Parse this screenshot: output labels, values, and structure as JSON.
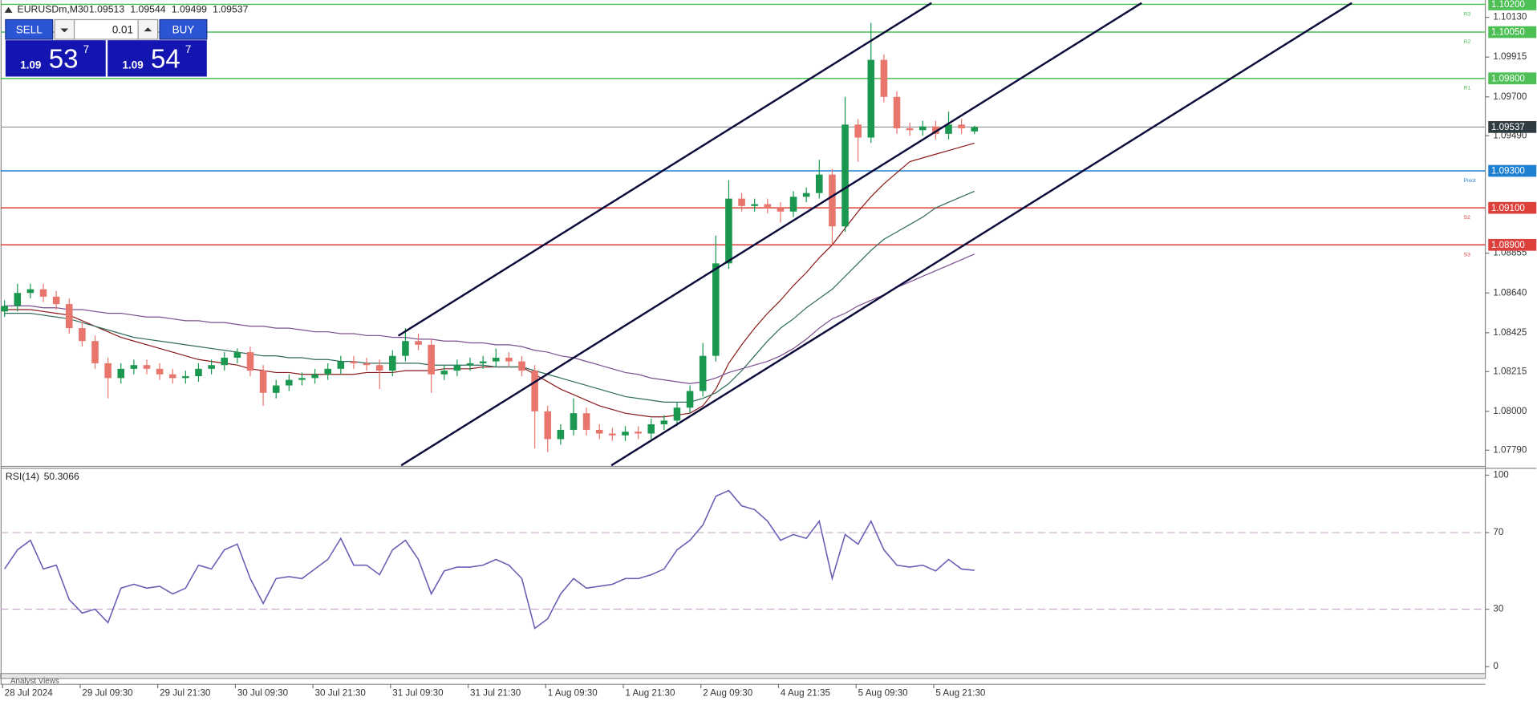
{
  "chart_data": [
    {
      "type": "candlestick",
      "title": "EURUSDm,M30",
      "header_values": [
        1.09513,
        1.09544,
        1.09499,
        1.09537
      ],
      "categories": [
        "28 Jul 2024",
        null,
        null,
        null,
        null,
        null,
        "29 Jul 09:30",
        null,
        null,
        null,
        null,
        null,
        "29 Jul 21:30",
        null,
        null,
        null,
        null,
        null,
        "30 Jul 09:30",
        null,
        null,
        null,
        null,
        null,
        "30 Jul 21:30",
        null,
        null,
        null,
        null,
        null,
        "31 Jul 09:30",
        null,
        null,
        null,
        null,
        null,
        "31 Jul 21:30",
        null,
        null,
        null,
        null,
        null,
        "1 Aug 09:30",
        null,
        null,
        null,
        null,
        null,
        "1 Aug 21:30",
        null,
        null,
        null,
        null,
        null,
        "2 Aug 09:30",
        null,
        null,
        null,
        null,
        null,
        "4 Aug 21:35",
        null,
        null,
        null,
        null,
        null,
        "5 Aug 09:30",
        null,
        null,
        null,
        null,
        null,
        "5 Aug 21:30",
        null,
        null,
        null
      ],
      "open": [
        1.0854,
        1.0857,
        1.0864,
        1.0866,
        1.0862,
        1.0858,
        1.0845,
        1.0838,
        1.0826,
        1.0818,
        1.0823,
        1.0825,
        1.0823,
        1.082,
        1.0818,
        1.0819,
        1.0823,
        1.0825,
        1.0829,
        1.0832,
        1.0822,
        1.081,
        1.0814,
        1.0817,
        1.0818,
        1.082,
        1.0823,
        1.0827,
        1.0826,
        1.0825,
        1.0822,
        1.083,
        1.0838,
        1.0836,
        1.082,
        1.0822,
        1.0825,
        1.0826,
        1.0827,
        1.0829,
        1.0827,
        1.0822,
        1.08,
        1.0785,
        1.079,
        1.0799,
        1.079,
        1.0788,
        1.0787,
        1.0789,
        1.0788,
        1.0793,
        1.0795,
        1.0802,
        1.0811,
        1.083,
        1.088,
        1.0915,
        1.0911,
        1.0912,
        1.091,
        1.0908,
        1.0916,
        1.0918,
        1.0928,
        1.09,
        1.0955,
        1.0948,
        1.099,
        1.097,
        1.0953,
        1.0952,
        1.0954,
        1.095,
        1.0955,
        1.09513
      ],
      "high": [
        1.086,
        1.0869,
        1.0869,
        1.0869,
        1.0865,
        1.0861,
        1.0848,
        1.0841,
        1.0829,
        1.0826,
        1.0828,
        1.0828,
        1.0826,
        1.0823,
        1.0822,
        1.0826,
        1.0828,
        1.0832,
        1.0834,
        1.0835,
        1.0825,
        1.0817,
        1.082,
        1.0821,
        1.0823,
        1.0826,
        1.083,
        1.083,
        1.0829,
        1.0828,
        1.0833,
        1.0845,
        1.0842,
        1.0839,
        1.0825,
        1.0828,
        1.0829,
        1.083,
        1.0834,
        1.0832,
        1.083,
        1.0825,
        1.0803,
        1.0793,
        1.0807,
        1.0802,
        1.0793,
        1.0791,
        1.0792,
        1.0792,
        1.0796,
        1.0798,
        1.0805,
        1.0814,
        1.0837,
        1.0895,
        1.0925,
        1.0918,
        1.0915,
        1.0915,
        1.0913,
        1.0919,
        1.0921,
        1.0936,
        1.0931,
        1.097,
        1.0958,
        1.101,
        1.0993,
        1.0973,
        1.0956,
        1.0957,
        1.0957,
        1.0962,
        1.0958,
        1.09544
      ],
      "low": [
        1.0851,
        1.0854,
        1.0861,
        1.0859,
        1.0855,
        1.0842,
        1.0835,
        1.0823,
        1.0807,
        1.0815,
        1.082,
        1.082,
        1.0817,
        1.0815,
        1.0815,
        1.0816,
        1.082,
        1.0822,
        1.0826,
        1.0819,
        1.0803,
        1.0807,
        1.0811,
        1.0814,
        1.0815,
        1.0817,
        1.082,
        1.0823,
        1.0822,
        1.0812,
        1.0819,
        1.0827,
        1.0833,
        1.081,
        1.0817,
        1.0819,
        1.0822,
        1.0823,
        1.0824,
        1.0824,
        1.0819,
        1.078,
        1.0778,
        1.0782,
        1.0787,
        1.0787,
        1.0785,
        1.0784,
        1.0784,
        1.0785,
        1.0785,
        1.079,
        1.0792,
        1.0799,
        1.0808,
        1.0827,
        1.0877,
        1.0908,
        1.0908,
        1.0907,
        1.0902,
        1.0905,
        1.0913,
        1.0915,
        1.089,
        1.0897,
        1.0935,
        1.0945,
        1.0967,
        1.095,
        1.0949,
        1.0949,
        1.0947,
        1.0947,
        1.095,
        1.09499
      ],
      "close": [
        1.0857,
        1.0864,
        1.0866,
        1.0862,
        1.0858,
        1.0845,
        1.0838,
        1.0826,
        1.0818,
        1.0823,
        1.0825,
        1.0823,
        1.082,
        1.0818,
        1.0819,
        1.0823,
        1.0825,
        1.0829,
        1.0832,
        1.0822,
        1.081,
        1.0814,
        1.0817,
        1.0818,
        1.082,
        1.0823,
        1.0827,
        1.0826,
        1.0825,
        1.0822,
        1.083,
        1.0838,
        1.0836,
        1.082,
        1.0822,
        1.0825,
        1.0826,
        1.0827,
        1.0829,
        1.0827,
        1.0822,
        1.08,
        1.0785,
        1.079,
        1.0799,
        1.079,
        1.0788,
        1.0787,
        1.0789,
        1.0788,
        1.0793,
        1.0795,
        1.0802,
        1.0811,
        1.083,
        1.088,
        1.0915,
        1.0911,
        1.0912,
        1.091,
        1.0908,
        1.0916,
        1.0918,
        1.0928,
        1.09,
        1.0955,
        1.0948,
        1.099,
        1.097,
        1.0953,
        1.0952,
        1.0954,
        1.095,
        1.0955,
        1.0953,
        1.09537
      ],
      "up_color": "#1a9850",
      "down_color": "#e8766d",
      "lines": [
        {
          "color": "#8b1a1a",
          "values": [
            1.0855,
            1.0855,
            1.0855,
            1.0854,
            1.0853,
            1.0852,
            1.0849,
            1.0846,
            1.0843,
            1.084,
            1.0838,
            1.0836,
            1.0834,
            1.0832,
            1.083,
            1.0828,
            1.0827,
            1.0826,
            1.0825,
            1.0823,
            1.0822,
            1.0821,
            1.0821,
            1.082,
            1.082,
            1.082,
            1.082,
            1.082,
            1.0821,
            1.0821,
            1.0821,
            1.0822,
            1.0822,
            1.0822,
            1.0823,
            1.0823,
            1.0823,
            1.0824,
            1.0824,
            1.0824,
            1.0824,
            1.082,
            1.0816,
            1.0812,
            1.0809,
            1.0806,
            1.0803,
            1.0801,
            1.0799,
            1.0798,
            1.0797,
            1.0797,
            1.0798,
            1.0799,
            1.0803,
            1.0812,
            1.0826,
            1.0836,
            1.0845,
            1.0853,
            1.086,
            1.0868,
            1.0875,
            1.0883,
            1.089,
            1.0899,
            1.0908,
            1.0916,
            1.0923,
            1.0929,
            1.0935,
            1.0937,
            1.0939,
            1.0941,
            1.0943,
            1.0945
          ]
        },
        {
          "color": "#2f6b5a",
          "values": [
            1.0853,
            1.0853,
            1.0853,
            1.0852,
            1.0851,
            1.085,
            1.0848,
            1.0846,
            1.0844,
            1.0842,
            1.084,
            1.0839,
            1.0838,
            1.0837,
            1.0836,
            1.0835,
            1.0834,
            1.0833,
            1.0832,
            1.0831,
            1.083,
            1.083,
            1.0829,
            1.0829,
            1.0828,
            1.0828,
            1.0827,
            1.0827,
            1.0826,
            1.0826,
            1.0826,
            1.0826,
            1.0826,
            1.0825,
            1.0825,
            1.0825,
            1.0825,
            1.0825,
            1.0824,
            1.0824,
            1.0824,
            1.0822,
            1.082,
            1.0818,
            1.0816,
            1.0814,
            1.0812,
            1.081,
            1.0808,
            1.0807,
            1.0806,
            1.0805,
            1.0805,
            1.0805,
            1.0807,
            1.081,
            1.0815,
            1.0822,
            1.083,
            1.0838,
            1.0845,
            1.085,
            1.0856,
            1.0861,
            1.0866,
            1.0873,
            1.088,
            1.0887,
            1.0893,
            1.0897,
            1.0901,
            1.0905,
            1.091,
            1.0913,
            1.0916,
            1.0919
          ]
        },
        {
          "color": "#7b4f8f",
          "values": [
            1.0857,
            1.0857,
            1.0857,
            1.0856,
            1.0856,
            1.0855,
            1.0855,
            1.0854,
            1.0853,
            1.0853,
            1.0852,
            1.0851,
            1.0851,
            1.085,
            1.0849,
            1.0849,
            1.0848,
            1.0848,
            1.0847,
            1.0846,
            1.0846,
            1.0845,
            1.0845,
            1.0844,
            1.0843,
            1.0843,
            1.0842,
            1.0842,
            1.0841,
            1.0841,
            1.084,
            1.084,
            1.0839,
            1.0839,
            1.0838,
            1.0838,
            1.0837,
            1.0837,
            1.0836,
            1.0836,
            1.0835,
            1.0833,
            1.0832,
            1.083,
            1.0829,
            1.0827,
            1.0825,
            1.0823,
            1.0821,
            1.082,
            1.0818,
            1.0817,
            1.0816,
            1.0815,
            1.0816,
            1.0818,
            1.0821,
            1.0823,
            1.0825,
            1.0827,
            1.083,
            1.0834,
            1.0839,
            1.0845,
            1.085,
            1.0853,
            1.0857,
            1.086,
            1.0863,
            1.0867,
            1.087,
            1.0873,
            1.0876,
            1.0879,
            1.0882,
            1.0885
          ]
        }
      ],
      "levels": [
        {
          "value": 1.102,
          "label": "1.10200",
          "name": "R3",
          "color": "#4cbf55"
        },
        {
          "value": 1.1005,
          "label": "1.10050",
          "name": "R2",
          "color": "#4cbf55"
        },
        {
          "value": 1.098,
          "label": "1.09800",
          "name": "R1",
          "color": "#4cbf55"
        },
        {
          "value": 1.093,
          "label": "1.09300",
          "name": "Pivot",
          "color": "#1f7fd0"
        },
        {
          "value": 1.091,
          "label": "1.09100",
          "name": "S2",
          "color": "#dd3f3a"
        },
        {
          "value": 1.089,
          "label": "1.08900",
          "name": "S3",
          "color": "#dd3f3a"
        }
      ],
      "last_price": 1.09537,
      "ylim": [
        1.07708,
        1.10213
      ],
      "yticks": [
        {
          "value": 1.0779,
          "label": "1.07790"
        },
        {
          "value": 1.08,
          "label": "1.08000"
        },
        1.08215,
        1.08425,
        {
          "value": 1.0864,
          "label": "1.08640"
        },
        1.08855,
        {
          "value": 1.0949,
          "label": "1.09490"
        },
        {
          "value": 1.097,
          "label": "1.09700"
        },
        1.09915,
        {
          "value": 1.1013,
          "label": "1.10130"
        }
      ]
    },
    {
      "type": "line",
      "title": "RSI(14)",
      "color": "#6b5fb5",
      "values": [
        51,
        61,
        66,
        51,
        53,
        35,
        28,
        30,
        23,
        41,
        43,
        41,
        42,
        38,
        41,
        53,
        51,
        61,
        64,
        46,
        33,
        46,
        47,
        46,
        51,
        56,
        67,
        53,
        53,
        48,
        61,
        66,
        56,
        38,
        50,
        52,
        52,
        53,
        56,
        53,
        46,
        20,
        25,
        38,
        46,
        41,
        42,
        43,
        46,
        46,
        48,
        51,
        61,
        66,
        74,
        89,
        92,
        84,
        82,
        76,
        66,
        69,
        67,
        76,
        46,
        69,
        64,
        76,
        61,
        53,
        52,
        53,
        50,
        56,
        51,
        50.3066
      ],
      "ylim": [
        0,
        100
      ],
      "yticks": [
        0,
        30,
        70,
        100
      ]
    }
  ],
  "ui": {
    "sell": "SELL",
    "buy": "BUY",
    "lot": 0.01,
    "bid": [
      "1.09",
      "53",
      "7"
    ],
    "ask": [
      "1.09",
      "54",
      "7"
    ],
    "footer": "Analyst Views"
  }
}
